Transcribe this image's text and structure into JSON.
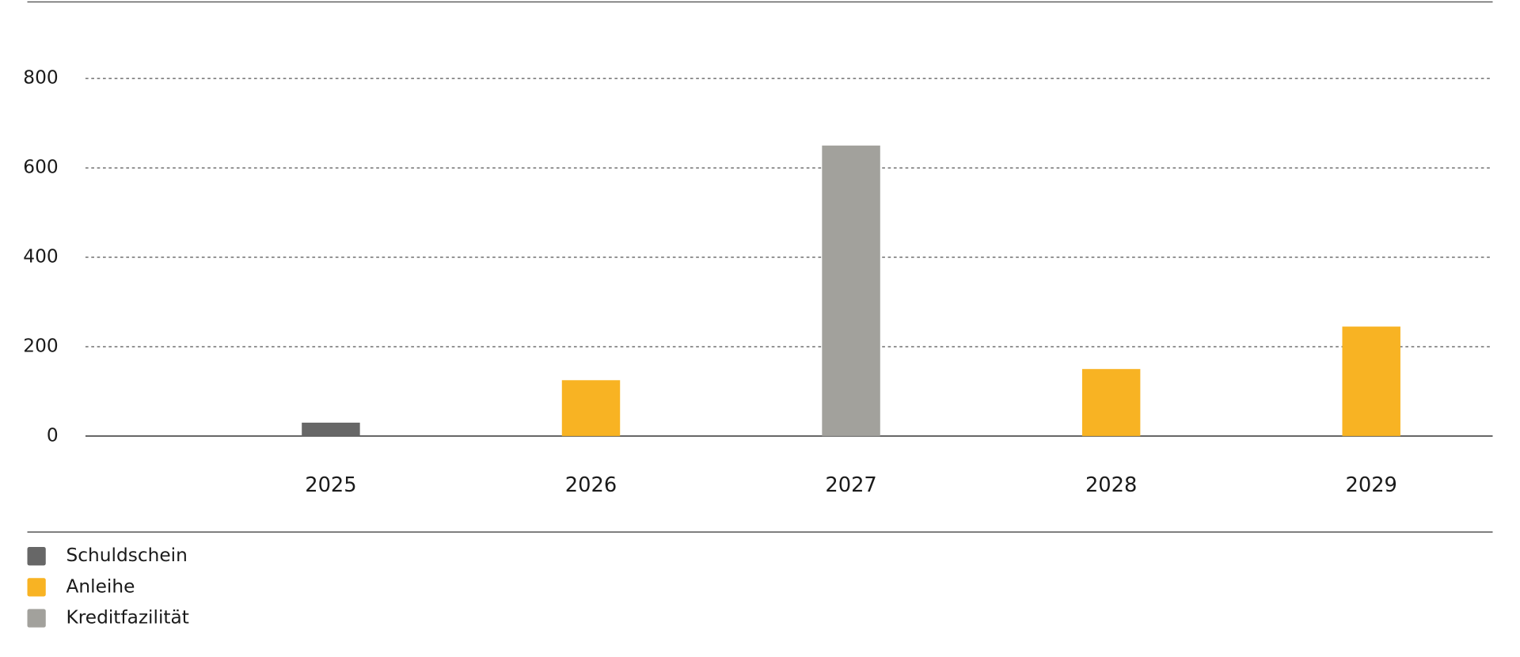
{
  "chart_data": {
    "type": "bar",
    "categories": [
      "2025",
      "2026",
      "2027",
      "2028",
      "2029"
    ],
    "series": [
      {
        "name": "Schuldschein",
        "color": "#676767",
        "values": [
          30,
          null,
          null,
          null,
          null
        ]
      },
      {
        "name": "Anleihe",
        "color": "#f8b323",
        "values": [
          null,
          125,
          null,
          150,
          245
        ]
      },
      {
        "name": "Kreditfazilität",
        "color": "#a2a19c",
        "values": [
          null,
          null,
          650,
          null,
          null
        ]
      }
    ],
    "ylim": [
      0,
      800
    ],
    "yticks": [
      0,
      200,
      400,
      600,
      800
    ],
    "grid": true,
    "legend": "bottom-left"
  }
}
